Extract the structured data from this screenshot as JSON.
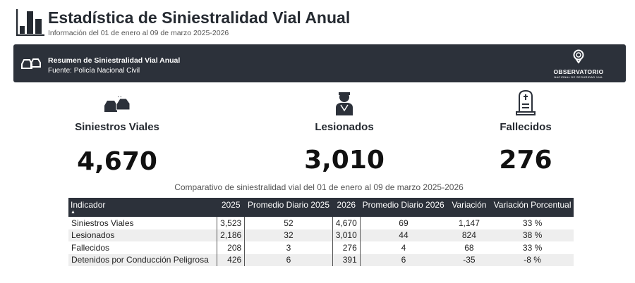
{
  "header": {
    "title": "Estadística de Siniestralidad Vial Anual",
    "subtitle": "Información del 01 de enero al 09 de marzo 2025-2026"
  },
  "banner": {
    "title": "Resumen de Siniestralidad Vial Anual",
    "source": "Fuente: Policía Nacional Civil",
    "logo_line1": "OBSERVATORIO",
    "logo_line2": "NACIONAL DE SEGURIDAD VIAL"
  },
  "kpis": [
    {
      "label": "Siniestros Viales",
      "value": "4,670",
      "icon": "car-crash-icon"
    },
    {
      "label": "Lesionados",
      "value": "3,010",
      "icon": "injured-person-icon"
    },
    {
      "label": "Fallecidos",
      "value": "276",
      "icon": "tombstone-icon"
    }
  ],
  "table": {
    "caption": "Comparativo de siniestralidad vial del 01 de enero al 09 de marzo 2025-2026",
    "columns": [
      "Indicador",
      "2025",
      "Promedio Diario 2025",
      "2026",
      "Promedio Diario 2026",
      "Variación",
      "Variación Porcentual"
    ],
    "rows": [
      [
        "Siniestros Viales",
        "3,523",
        "52",
        "4,670",
        "69",
        "1,147",
        "33 %"
      ],
      [
        "Lesionados",
        "2,186",
        "32",
        "3,010",
        "44",
        "824",
        "38 %"
      ],
      [
        "Fallecidos",
        "208",
        "3",
        "276",
        "4",
        "68",
        "33 %"
      ],
      [
        "Detenidos por Conducción Peligrosa",
        "426",
        "6",
        "391",
        "6",
        "-35",
        "-8 %"
      ]
    ]
  },
  "colors": {
    "banner": "#2c313a"
  }
}
